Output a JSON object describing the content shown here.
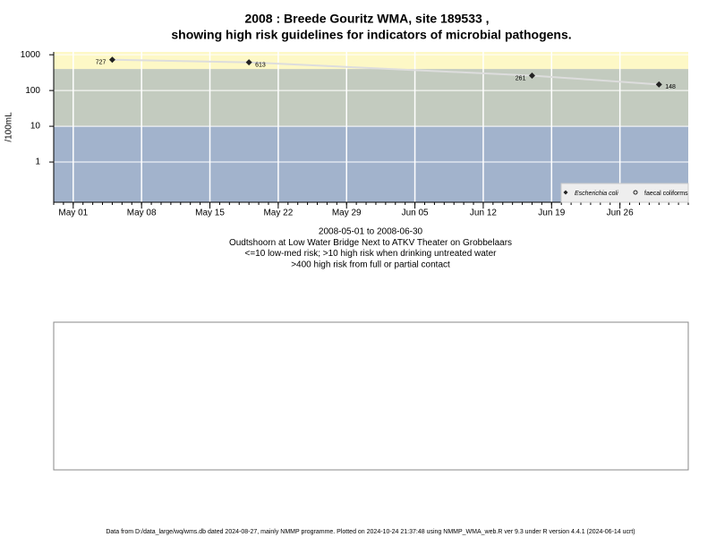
{
  "chart_data": {
    "type": "line",
    "title": "2008 : Breede Gouritz WMA, site 189533 ,",
    "subtitle": "showing high risk guidelines for indicators of microbial pathogens.",
    "y_label": "/100mL",
    "x_label_lines": [
      "2008-05-01 to 2008-06-30",
      "Oudtshoorn at Low Water Bridge Next to ATKV Theater on Grobbelaars",
      "<=10 low-med risk; >10 high risk when drinking untreated water",
      ">400 high risk from full or partial contact"
    ],
    "footer": "Data from D:/data_large/wq/wms.db dated 2024-08-27, mainly NMMP programme. Plotted on 2024-10-24 21:37:48 using NMMP_WMA_web.R ver 9.3 under R version 4.4.1 (2024-06-14 ucrt)",
    "x": [
      "2008-05-05",
      "2008-05-19",
      "2008-06-17",
      "2008-06-30"
    ],
    "series": [
      {
        "name": "Escherichia coli",
        "color": "#222222",
        "line_color": "#dddddd",
        "marker": "diamond",
        "values": [
          727,
          613,
          261,
          148
        ]
      },
      {
        "name": "faecal coliforms",
        "color": "#222222",
        "marker": "circle",
        "values": [
          null,
          null,
          null,
          null
        ]
      }
    ],
    "thresholds": [
      10,
      400
    ],
    "band_colors": [
      "#a2b3cc",
      "#c3cbbf",
      "#fdf8c6"
    ],
    "log_y": true,
    "ylim": [
      0.075,
      1200
    ],
    "yticks": [
      1,
      10,
      100,
      1000
    ],
    "xlim": [
      "2008-04-29",
      "2008-07-03"
    ],
    "xticks": [
      {
        "value": "2008-05-01",
        "label": "May 01"
      },
      {
        "value": "2008-05-08",
        "label": "May 08"
      },
      {
        "value": "2008-05-15",
        "label": "May 15"
      },
      {
        "value": "2008-05-22",
        "label": "May 22"
      },
      {
        "value": "2008-05-29",
        "label": "May 29"
      },
      {
        "value": "2008-06-05",
        "label": "Jun 05"
      },
      {
        "value": "2008-06-12",
        "label": "Jun 12"
      },
      {
        "value": "2008-06-19",
        "label": "Jun 19"
      },
      {
        "value": "2008-06-26",
        "label": "Jun 26"
      }
    ],
    "grid": true,
    "legend_position": "bottom-right"
  }
}
